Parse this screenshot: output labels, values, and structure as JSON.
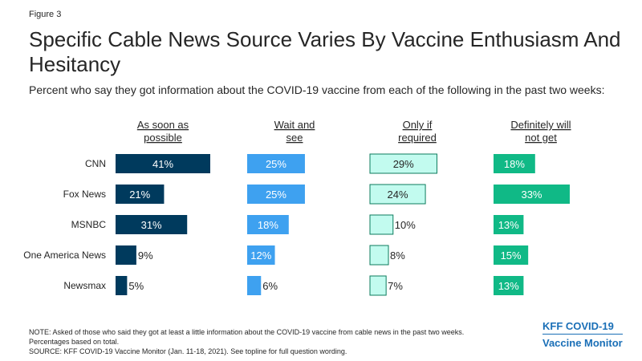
{
  "figure_label": "Figure 3",
  "chart_data": {
    "type": "bar",
    "title": "Specific Cable News Source Varies By Vaccine Enthusiasm And Hesitancy",
    "subtitle": "Percent who say they got information about the COVID-19 vaccine from each of the following in the past two weeks:",
    "categories": [
      "CNN",
      "Fox News",
      "MSNBC",
      "One America News",
      "Newsmax"
    ],
    "value_suffix": "%",
    "xlim": [
      0,
      41
    ],
    "series": [
      {
        "name": "As soon as possible",
        "header_lines": [
          "As soon as",
          "possible"
        ],
        "color": "#003a5d",
        "label_color": "#ffffff",
        "values": [
          41,
          21,
          31,
          9,
          5
        ]
      },
      {
        "name": "Wait and see",
        "header_lines": [
          "Wait and",
          "see"
        ],
        "color": "#3ea1f0",
        "label_color": "#ffffff",
        "values": [
          25,
          25,
          18,
          12,
          6
        ]
      },
      {
        "name": "Only if required",
        "header_lines": [
          "Only if",
          "required"
        ],
        "color": "#c2fbef",
        "label_color": "#262626",
        "stroke": "#0c7b5c",
        "values": [
          29,
          24,
          10,
          8,
          7
        ]
      },
      {
        "name": "Definitely will not get",
        "header_lines": [
          "Definitely will",
          "not get"
        ],
        "color": "#10b986",
        "label_color": "#ffffff",
        "values": [
          18,
          33,
          13,
          15,
          13
        ]
      }
    ]
  },
  "notes": {
    "note_line1": "NOTE: Asked of those who said they got at least a little information about the COVID-19 vaccine from cable news in the past two weeks.",
    "note_line2": "Percentages based on total.",
    "source": "SOURCE: KFF COVID-19 Vaccine Monitor (Jan. 11-18, 2021). See topline for full question wording."
  },
  "brand": {
    "line1": "KFF COVID-19",
    "line2": "Vaccine Monitor"
  }
}
